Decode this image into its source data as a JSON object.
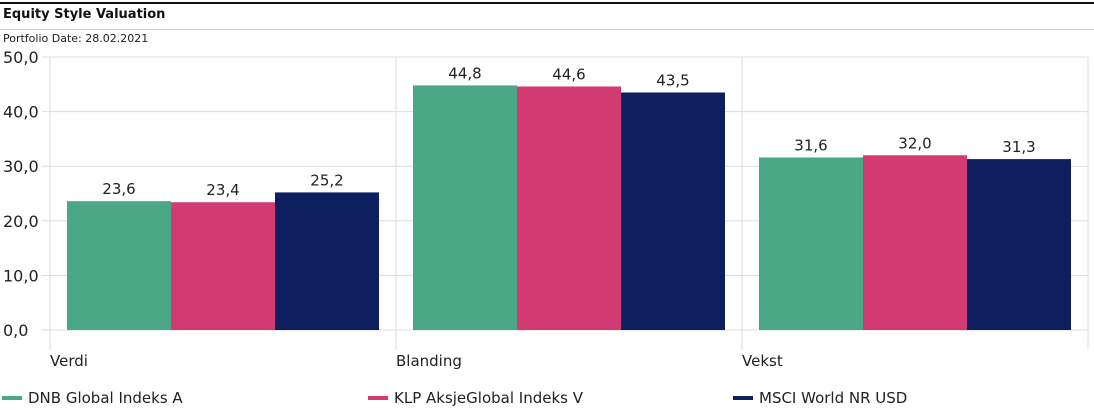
{
  "header": {
    "title": "Equity Style Valuation",
    "subtitle": "Portfolio Date: 28.02.2021"
  },
  "chart_data": {
    "type": "bar",
    "title": "Equity Style Valuation",
    "categories": [
      "Verdi",
      "Blanding",
      "Vekst"
    ],
    "series": [
      {
        "name": "DNB Global Indeks A",
        "color": "#4aa887",
        "values": [
          23.6,
          44.8,
          31.6
        ],
        "labels": [
          "23,6",
          "44,8",
          "31,6"
        ]
      },
      {
        "name": "KLP AksjeGlobal Indeks V",
        "color": "#d13b72",
        "values": [
          23.4,
          44.6,
          32.0
        ],
        "labels": [
          "23,4",
          "44,6",
          "32,0"
        ]
      },
      {
        "name": "MSCI World NR USD",
        "color": "#0e1f5f",
        "values": [
          25.2,
          43.5,
          31.3
        ],
        "labels": [
          "25,2",
          "43,5",
          "31,3"
        ]
      }
    ],
    "yticks": [
      0,
      10,
      20,
      30,
      40,
      50
    ],
    "ytick_labels": [
      "0,0",
      "10,0",
      "20,0",
      "30,0",
      "40,0",
      "50,0"
    ],
    "ylim": [
      0,
      50
    ],
    "grid": true,
    "legend_position": "bottom"
  }
}
